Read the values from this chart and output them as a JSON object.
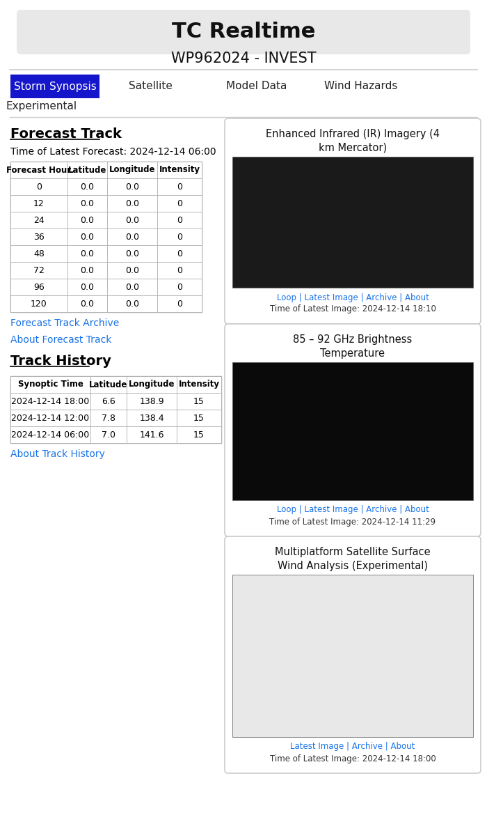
{
  "title": "TC Realtime",
  "subtitle": "WP962024 - INVEST",
  "nav_tabs": [
    "Storm Synopsis",
    "Satellite",
    "Model Data",
    "Wind Hazards"
  ],
  "nav_tab_active": 0,
  "nav_tab2": "Experimental",
  "section1_title": "Forecast Track",
  "forecast_time_label": "Time of Latest Forecast: 2024-12-14 06:00",
  "forecast_headers": [
    "Forecast Hour",
    "Latitude",
    "Longitude",
    "Intensity"
  ],
  "forecast_rows": [
    [
      "0",
      "0.0",
      "0.0",
      "0"
    ],
    [
      "12",
      "0.0",
      "0.0",
      "0"
    ],
    [
      "24",
      "0.0",
      "0.0",
      "0"
    ],
    [
      "36",
      "0.0",
      "0.0",
      "0"
    ],
    [
      "48",
      "0.0",
      "0.0",
      "0"
    ],
    [
      "72",
      "0.0",
      "0.0",
      "0"
    ],
    [
      "96",
      "0.0",
      "0.0",
      "0"
    ],
    [
      "120",
      "0.0",
      "0.0",
      "0"
    ]
  ],
  "link1": "Forecast Track Archive",
  "link2": "About Forecast Track",
  "section2_title": "Track History",
  "history_headers": [
    "Synoptic Time",
    "Latitude",
    "Longitude",
    "Intensity"
  ],
  "history_rows": [
    [
      "2024-12-14 18:00",
      "6.6",
      "138.9",
      "15"
    ],
    [
      "2024-12-14 12:00",
      "7.8",
      "138.4",
      "15"
    ],
    [
      "2024-12-14 06:00",
      "7.0",
      "141.6",
      "15"
    ]
  ],
  "link3": "About Track History",
  "right_panels": [
    {
      "title": "Enhanced Infrared (IR) Imagery (4\nkm Mercator)",
      "link_line": "Loop | Latest Image | Archive | About",
      "time_line": "Time of Latest Image: 2024-12-14 18:10",
      "img_color": "#1a1a1a"
    },
    {
      "title": "85 – 92 GHz Brightness\nTemperature",
      "link_line": "Loop | Latest Image | Archive | About",
      "time_line": "Time of Latest Image: 2024-12-14 11:29",
      "img_color": "#0a0a0a"
    },
    {
      "title": "Multiplatform Satellite Surface\nWind Analysis (Experimental)",
      "link_line": "Latest Image | Archive | About",
      "time_line": "Time of Latest Image: 2024-12-14 18:00",
      "img_color": "#e8e8e8"
    }
  ],
  "active_tab_color": "#1515cc",
  "link_color": "#1a73e8",
  "background_color": "#ffffff",
  "divider_color": "#cccccc",
  "header_bg": "#e8e8e8"
}
